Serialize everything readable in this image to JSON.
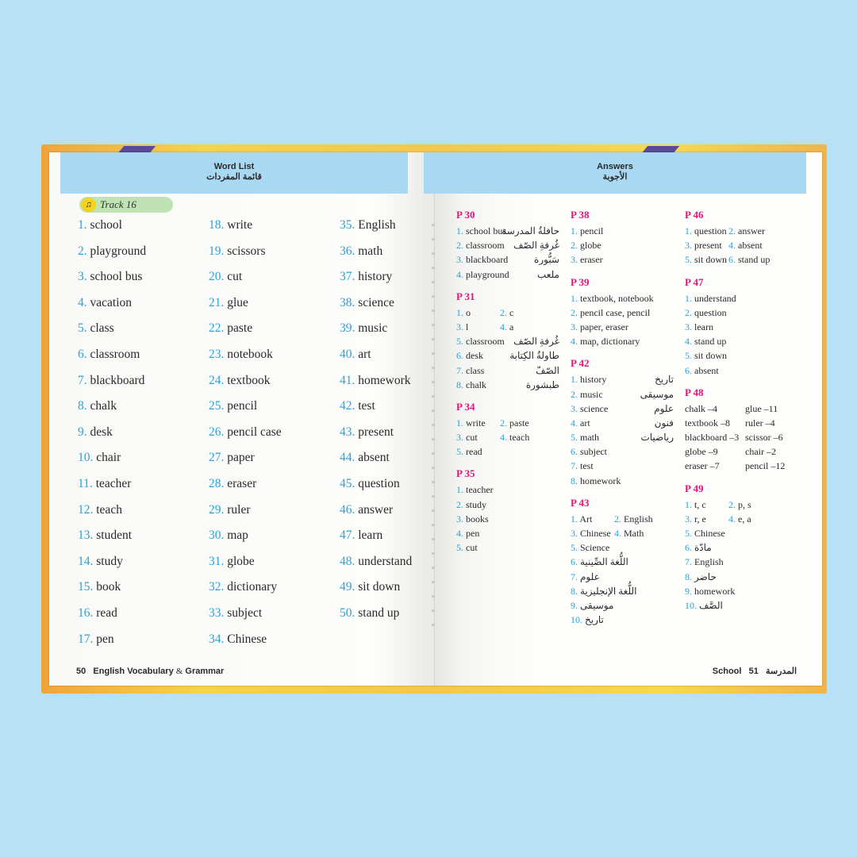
{
  "word_list": {
    "title_en": "Word List",
    "title_ar": "قائمة المفردات",
    "track": "Track 16",
    "columns": [
      [
        [
          "1.",
          "school"
        ],
        [
          "2.",
          "playground"
        ],
        [
          "3.",
          "school bus"
        ],
        [
          "4.",
          "vacation"
        ],
        [
          "5.",
          "class"
        ],
        [
          "6.",
          "classroom"
        ],
        [
          "7.",
          "blackboard"
        ],
        [
          "8.",
          "chalk"
        ],
        [
          "9.",
          "desk"
        ],
        [
          "10.",
          "chair"
        ],
        [
          "11.",
          "teacher"
        ],
        [
          "12.",
          "teach"
        ],
        [
          "13.",
          "student"
        ],
        [
          "14.",
          "study"
        ],
        [
          "15.",
          "book"
        ],
        [
          "16.",
          "read"
        ],
        [
          "17.",
          "pen"
        ]
      ],
      [
        [
          "18.",
          "write"
        ],
        [
          "19.",
          "scissors"
        ],
        [
          "20.",
          "cut"
        ],
        [
          "21.",
          "glue"
        ],
        [
          "22.",
          "paste"
        ],
        [
          "23.",
          "notebook"
        ],
        [
          "24.",
          "textbook"
        ],
        [
          "25.",
          "pencil"
        ],
        [
          "26.",
          "pencil case"
        ],
        [
          "27.",
          "paper"
        ],
        [
          "28.",
          "eraser"
        ],
        [
          "29.",
          "ruler"
        ],
        [
          "30.",
          "map"
        ],
        [
          "31.",
          "globe"
        ],
        [
          "32.",
          "dictionary"
        ],
        [
          "33.",
          "subject"
        ],
        [
          "34.",
          "Chinese"
        ]
      ],
      [
        [
          "35.",
          "English"
        ],
        [
          "36.",
          "math"
        ],
        [
          "37.",
          "history"
        ],
        [
          "38.",
          "science"
        ],
        [
          "39.",
          "music"
        ],
        [
          "40.",
          "art"
        ],
        [
          "41.",
          "homework"
        ],
        [
          "42.",
          "test"
        ],
        [
          "43.",
          "present"
        ],
        [
          "44.",
          "absent"
        ],
        [
          "45.",
          "question"
        ],
        [
          "46.",
          "answer"
        ],
        [
          "47.",
          "learn"
        ],
        [
          "48.",
          "understand"
        ],
        [
          "49.",
          "sit down"
        ],
        [
          "50.",
          "stand up"
        ]
      ]
    ],
    "footer_num": "50",
    "footer_title_a": "English Vocabulary",
    "footer_amp": "&",
    "footer_title_b": "Grammar"
  },
  "answers": {
    "title_en": "Answers",
    "title_ar": "الأجوبة",
    "columns": [
      [
        {
          "page": "P 30",
          "lines": [
            {
              "n": "1.",
              "t": "school bus",
              "ar": "حافلةُ المدرسة"
            },
            {
              "n": "2.",
              "t": "classroom",
              "ar": "غُرفةِ الصّف"
            },
            {
              "n": "3.",
              "t": "blackboard",
              "ar": "سَبُّورة"
            },
            {
              "n": "4.",
              "t": "playground",
              "ar": "ملعب"
            }
          ]
        },
        {
          "page": "P 31",
          "lines": [
            {
              "n": "1.",
              "t": "o",
              "n2": "2.",
              "t2": "c"
            },
            {
              "n": "3.",
              "t": "l",
              "n2": "4.",
              "t2": "a"
            },
            {
              "n": "5.",
              "t": "classroom",
              "ar": "غُرفةِ الصّف"
            },
            {
              "n": "6.",
              "t": "desk",
              "ar": "طاولةُ الكِتابة"
            },
            {
              "n": "7.",
              "t": "class",
              "ar": "الصّفّ"
            },
            {
              "n": "8.",
              "t": "chalk",
              "ar": "طبشورة"
            }
          ]
        },
        {
          "page": "P 34",
          "lines": [
            {
              "n": "1.",
              "t": "write",
              "n2": "2.",
              "t2": "paste"
            },
            {
              "n": "3.",
              "t": "cut",
              "n2": "4.",
              "t2": "teach"
            },
            {
              "n": "5.",
              "t": "read"
            }
          ]
        },
        {
          "page": "P 35",
          "lines": [
            {
              "n": "1.",
              "t": "teacher"
            },
            {
              "n": "2.",
              "t": "study"
            },
            {
              "n": "3.",
              "t": "books"
            },
            {
              "n": "4.",
              "t": "pen"
            },
            {
              "n": "5.",
              "t": "cut"
            }
          ]
        }
      ],
      [
        {
          "page": "P 38",
          "lines": [
            {
              "n": "1.",
              "t": "pencil"
            },
            {
              "n": "2.",
              "t": "globe"
            },
            {
              "n": "3.",
              "t": "eraser"
            }
          ]
        },
        {
          "page": "P 39",
          "lines": [
            {
              "n": "1.",
              "t": "textbook, notebook"
            },
            {
              "n": "2.",
              "t": "pencil case, pencil"
            },
            {
              "n": "3.",
              "t": "paper, eraser"
            },
            {
              "n": "4.",
              "t": "map, dictionary"
            }
          ]
        },
        {
          "page": "P 42",
          "lines": [
            {
              "n": "1.",
              "t": "history",
              "ar": "تاريخ"
            },
            {
              "n": "2.",
              "t": "music",
              "ar": "موسيقى"
            },
            {
              "n": "3.",
              "t": "science",
              "ar": "علوم"
            },
            {
              "n": "4.",
              "t": "art",
              "ar": "فنون"
            },
            {
              "n": "5.",
              "t": "math",
              "ar": "رياضيات"
            },
            {
              "n": "6.",
              "t": "subject"
            },
            {
              "n": "7.",
              "t": "test"
            },
            {
              "n": "8.",
              "t": "homework"
            }
          ]
        },
        {
          "page": "P 43",
          "lines": [
            {
              "n": "1.",
              "t": "Art",
              "n2": "2.",
              "t2": "English"
            },
            {
              "n": "3.",
              "t": "Chinese",
              "n2": "4.",
              "t2": "Math"
            },
            {
              "n": "5.",
              "t": "Science"
            },
            {
              "n": "6.",
              "t": "اللُّغة الصِّينية"
            },
            {
              "n": "7.",
              "t": "علوم"
            },
            {
              "n": "8.",
              "t": "اللُّغة الإنجليزية"
            },
            {
              "n": "9.",
              "t": "موسيقى"
            },
            {
              "n": "10.",
              "t": "تاريخ"
            }
          ]
        }
      ],
      [
        {
          "page": "P 46",
          "lines": [
            {
              "n": "1.",
              "t": "question",
              "n2": "2.",
              "t2": "answer"
            },
            {
              "n": "3.",
              "t": "present",
              "n2": "4.",
              "t2": "absent"
            },
            {
              "n": "5.",
              "t": "sit down",
              "n2": "6.",
              "t2": "stand up"
            }
          ]
        },
        {
          "page": "P 47",
          "lines": [
            {
              "n": "1.",
              "t": "understand"
            },
            {
              "n": "2.",
              "t": "question"
            },
            {
              "n": "3.",
              "t": "learn"
            },
            {
              "n": "4.",
              "t": "stand up"
            },
            {
              "n": "5.",
              "t": "sit down"
            },
            {
              "n": "6.",
              "t": "absent"
            }
          ]
        },
        {
          "page": "P 48",
          "lines": [
            {
              "t": "chalk –4",
              "t2": "glue –11"
            },
            {
              "t": "textbook –8",
              "t2": "ruler –4"
            },
            {
              "t": "blackboard –3",
              "t2": "scissor –6"
            },
            {
              "t": "globe –9",
              "t2": "chair –2"
            },
            {
              "t": "eraser –7",
              "t2": "pencil –12"
            }
          ]
        },
        {
          "page": "P 49",
          "lines": [
            {
              "n": "1.",
              "t": "t, c",
              "n2": "2.",
              "t2": "p, s"
            },
            {
              "n": "3.",
              "t": "r, e",
              "n2": "4.",
              "t2": "e, a"
            },
            {
              "n": "5.",
              "t": "Chinese"
            },
            {
              "n": "6.",
              "t": "مادّة"
            },
            {
              "n": "7.",
              "t": "English"
            },
            {
              "n": "8.",
              "t": "حاضر"
            },
            {
              "n": "9.",
              "t": "homework"
            },
            {
              "n": "10.",
              "t": "الصَّف"
            }
          ]
        }
      ]
    ],
    "footer_en": "School",
    "footer_ar": "المدرسة",
    "footer_num": "51"
  },
  "colors": {
    "number": "#2aa3d8",
    "page_label": "#e0147a",
    "header": "#a8d8f2",
    "background": "#b9e1f5"
  }
}
